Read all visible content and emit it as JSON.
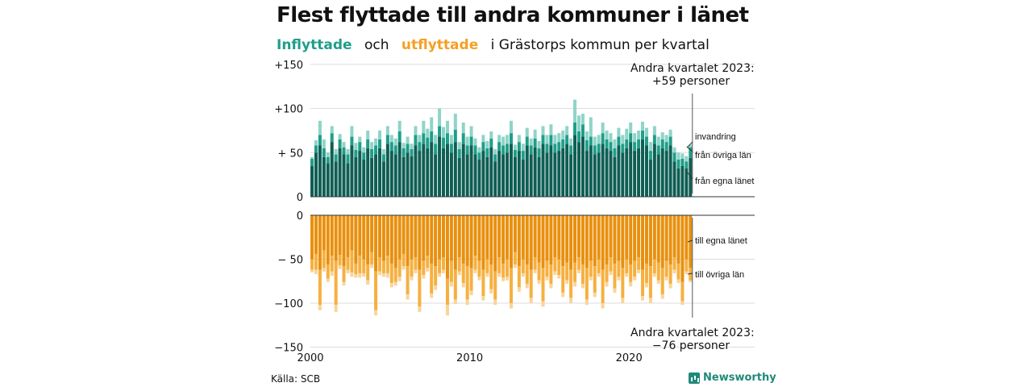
{
  "title": "Flest flyttade till andra kommuner i länet",
  "subtitle": {
    "in_word": "Inflyttade",
    "and_word": "och",
    "out_word": "utflyttade",
    "rest": "i Grästorps kommun per kvartal"
  },
  "annotations": {
    "top_line1": "Andra kvartalet 2023:",
    "top_line2": "+59 personer",
    "bottom_line1": "Andra kvartalet 2023:",
    "bottom_line2": "−76 personer"
  },
  "source": "Källa: SCB",
  "brand": "Newsworthy",
  "colors": {
    "in_egna": "#0f5e54",
    "in_ovriga": "#1f9e89",
    "in_invandring": "#8fd4c8",
    "ut_egna": "#e8900e",
    "ut_ovriga": "#f6b040",
    "ut_extra": "#f9d49a"
  },
  "chart_data": [
    {
      "type": "bar",
      "stacked": true,
      "title": "Inflyttade",
      "ylim": [
        0,
        150
      ],
      "yticks": [
        "0",
        "+ 50",
        "+100",
        "+150"
      ],
      "x_start": "2000 Q1",
      "series_labels": [
        "från egna länet",
        "från övriga län",
        "invandring"
      ],
      "series": [
        {
          "name": "från egna länet",
          "values": [
            35,
            50,
            58,
            45,
            38,
            62,
            40,
            55,
            48,
            38,
            58,
            45,
            52,
            42,
            55,
            44,
            48,
            55,
            40,
            60,
            52,
            48,
            62,
            45,
            50,
            46,
            58,
            52,
            60,
            55,
            62,
            48,
            68,
            55,
            60,
            50,
            62,
            44,
            60,
            48,
            58,
            48,
            42,
            52,
            45,
            56,
            40,
            52,
            48,
            50,
            60,
            45,
            52,
            42,
            58,
            48,
            56,
            45,
            60,
            50,
            58,
            50,
            52,
            55,
            60,
            48,
            70,
            62,
            68,
            52,
            58,
            48,
            50,
            60,
            55,
            52,
            45,
            58,
            50,
            55,
            62,
            52,
            55,
            65,
            58,
            42,
            60,
            48,
            55,
            52,
            58,
            40,
            32,
            35,
            32,
            44
          ]
        },
        {
          "name": "från övriga län",
          "values": [
            8,
            8,
            12,
            10,
            7,
            10,
            8,
            10,
            8,
            10,
            10,
            8,
            10,
            8,
            10,
            10,
            10,
            10,
            8,
            10,
            10,
            10,
            12,
            10,
            10,
            8,
            12,
            10,
            12,
            12,
            12,
            12,
            12,
            12,
            12,
            10,
            14,
            10,
            12,
            10,
            10,
            10,
            8,
            10,
            10,
            10,
            8,
            10,
            10,
            10,
            12,
            8,
            10,
            10,
            10,
            10,
            10,
            10,
            10,
            10,
            12,
            10,
            10,
            10,
            10,
            10,
            14,
            12,
            14,
            12,
            10,
            10,
            10,
            12,
            10,
            10,
            10,
            10,
            10,
            10,
            10,
            10,
            10,
            10,
            10,
            10,
            10,
            10,
            10,
            10,
            10,
            10,
            10,
            8,
            8,
            12
          ]
        },
        {
          "name": "invandring",
          "values": [
            2,
            6,
            16,
            10,
            5,
            8,
            6,
            6,
            6,
            6,
            12,
            8,
            6,
            6,
            10,
            8,
            8,
            10,
            6,
            10,
            8,
            8,
            12,
            6,
            8,
            6,
            10,
            8,
            14,
            10,
            16,
            10,
            20,
            12,
            14,
            10,
            18,
            8,
            12,
            10,
            12,
            8,
            6,
            8,
            8,
            8,
            6,
            8,
            10,
            10,
            14,
            6,
            8,
            8,
            10,
            8,
            10,
            8,
            10,
            10,
            12,
            10,
            10,
            10,
            10,
            8,
            26,
            18,
            12,
            10,
            22,
            10,
            10,
            12,
            10,
            10,
            10,
            10,
            10,
            12,
            12,
            10,
            10,
            10,
            10,
            10,
            10,
            10,
            8,
            8,
            8,
            6,
            8,
            6,
            6,
            3
          ]
        }
      ]
    },
    {
      "type": "bar",
      "stacked": true,
      "title": "Utflyttade",
      "ylim": [
        -150,
        0
      ],
      "yticks": [
        "0",
        "− 50",
        "−100",
        "−150"
      ],
      "xticks": [
        "2000",
        "2010",
        "2020"
      ],
      "x_start": "2000 Q1",
      "series_labels": [
        "till egna länet",
        "till övriga län"
      ],
      "series": [
        {
          "name": "till egna länet",
          "values": [
            -50,
            -44,
            -62,
            -40,
            -56,
            -46,
            -52,
            -45,
            -58,
            -48,
            -40,
            -55,
            -46,
            -50,
            -56,
            -42,
            -64,
            -48,
            -52,
            -46,
            -55,
            -60,
            -50,
            -44,
            -58,
            -50,
            -48,
            -62,
            -52,
            -46,
            -55,
            -58,
            -50,
            -48,
            -72,
            -52,
            -62,
            -48,
            -55,
            -58,
            -60,
            -46,
            -52,
            -62,
            -50,
            -56,
            -64,
            -48,
            -55,
            -50,
            -60,
            -42,
            -58,
            -50,
            -56,
            -62,
            -48,
            -54,
            -60,
            -52,
            -56,
            -48,
            -50,
            -58,
            -54,
            -62,
            -54,
            -48,
            -56,
            -60,
            -52,
            -58,
            -50,
            -62,
            -56,
            -48,
            -55,
            -52,
            -60,
            -50,
            -56,
            -52,
            -48,
            -62,
            -55,
            -58,
            -50,
            -54,
            -60,
            -52,
            -56,
            -48,
            -55,
            -76,
            -50,
            -60
          ]
        },
        {
          "name": "till övriga län",
          "values": [
            -12,
            -18,
            -40,
            -20,
            -16,
            -18,
            -50,
            -12,
            -18,
            -14,
            -25,
            -12,
            -20,
            -16,
            -18,
            -14,
            -44,
            -16,
            -14,
            -20,
            -22,
            -16,
            -20,
            -14,
            -32,
            -20,
            -14,
            -42,
            -16,
            -14,
            -34,
            -22,
            -16,
            -14,
            -30,
            -24,
            -34,
            -16,
            -22,
            -38,
            -26,
            -16,
            -18,
            -30,
            -16,
            -28,
            -32,
            -18,
            -16,
            -20,
            -40,
            -14,
            -24,
            -16,
            -22,
            -32,
            -14,
            -20,
            -38,
            -18,
            -22,
            -16,
            -18,
            -30,
            -20,
            -32,
            -22,
            -14,
            -22,
            -36,
            -18,
            -30,
            -16,
            -38,
            -20,
            -16,
            -28,
            -18,
            -34,
            -16,
            -20,
            -18,
            -14,
            -30,
            -22,
            -36,
            -16,
            -20,
            -30,
            -18,
            -22,
            -14,
            -18,
            -22,
            -14,
            -14
          ]
        },
        {
          "name": "",
          "values": [
            -3,
            -5,
            -6,
            -4,
            -4,
            -5,
            -8,
            -4,
            -4,
            -4,
            -5,
            -4,
            -5,
            -4,
            -5,
            -4,
            -6,
            -4,
            -4,
            -5,
            -5,
            -4,
            -5,
            -4,
            -6,
            -4,
            -4,
            -6,
            -4,
            -4,
            -5,
            -5,
            -4,
            -4,
            -12,
            -5,
            -5,
            -4,
            -5,
            -6,
            -5,
            -4,
            -4,
            -5,
            -4,
            -5,
            -6,
            -4,
            -4,
            -4,
            -6,
            -4,
            -5,
            -4,
            -5,
            -6,
            -4,
            -4,
            -6,
            -4,
            -5,
            -4,
            -4,
            -5,
            -4,
            -6,
            -5,
            -4,
            -5,
            -6,
            -4,
            -5,
            -4,
            -6,
            -5,
            -4,
            -5,
            -4,
            -6,
            -4,
            -5,
            -4,
            -4,
            -5,
            -5,
            -6,
            -4,
            -4,
            -5,
            -4,
            -5,
            -4,
            -4,
            -4,
            -3,
            -2
          ]
        }
      ]
    }
  ]
}
